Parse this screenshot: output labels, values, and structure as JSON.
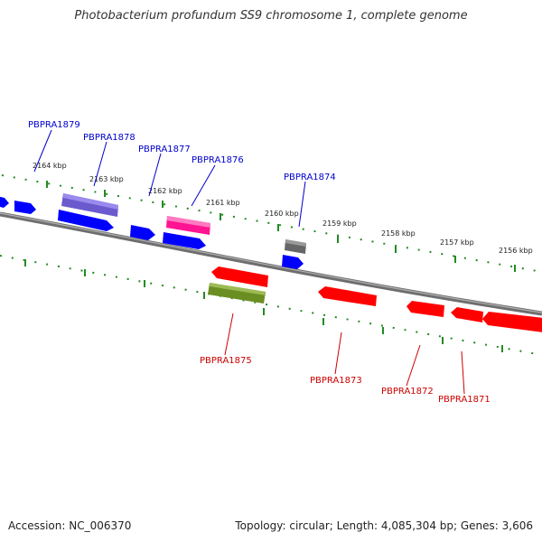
{
  "title": "Photobacterium profundum SS9 chromosome 1, complete genome",
  "accession": "Accession: NC_006370",
  "genome_info": "Topology: circular; Length: 4,085,304 bp; Genes: 3,606",
  "kbp_labels": [
    "2164 kbp",
    "2163 kbp",
    "2162 kbp",
    "2161 kbp",
    "2160 kbp",
    "2159 kbp",
    "2158 kbp",
    "2157 kbp",
    "2156 kbp"
  ],
  "genes_top": [
    "PBPRA1879",
    "PBPRA1878",
    "PBPRA1877",
    "PBPRA1876",
    "PBPRA1874"
  ],
  "genes_bottom": [
    "PBPRA1875",
    "PBPRA1873",
    "PBPRA1872",
    "PBPRA1871"
  ],
  "colors": {
    "forward_strand": "#0000ff",
    "reverse_strand": "#ff0000",
    "highlight_purple": "#6a5acd",
    "highlight_pink": "#ff1493",
    "highlight_gray": "#666666",
    "highlight_olive": "#6b8e23",
    "tick_green": "#228b22",
    "backbone": "#808080",
    "label_blue": "#0000cc",
    "label_red": "#cc0000"
  }
}
